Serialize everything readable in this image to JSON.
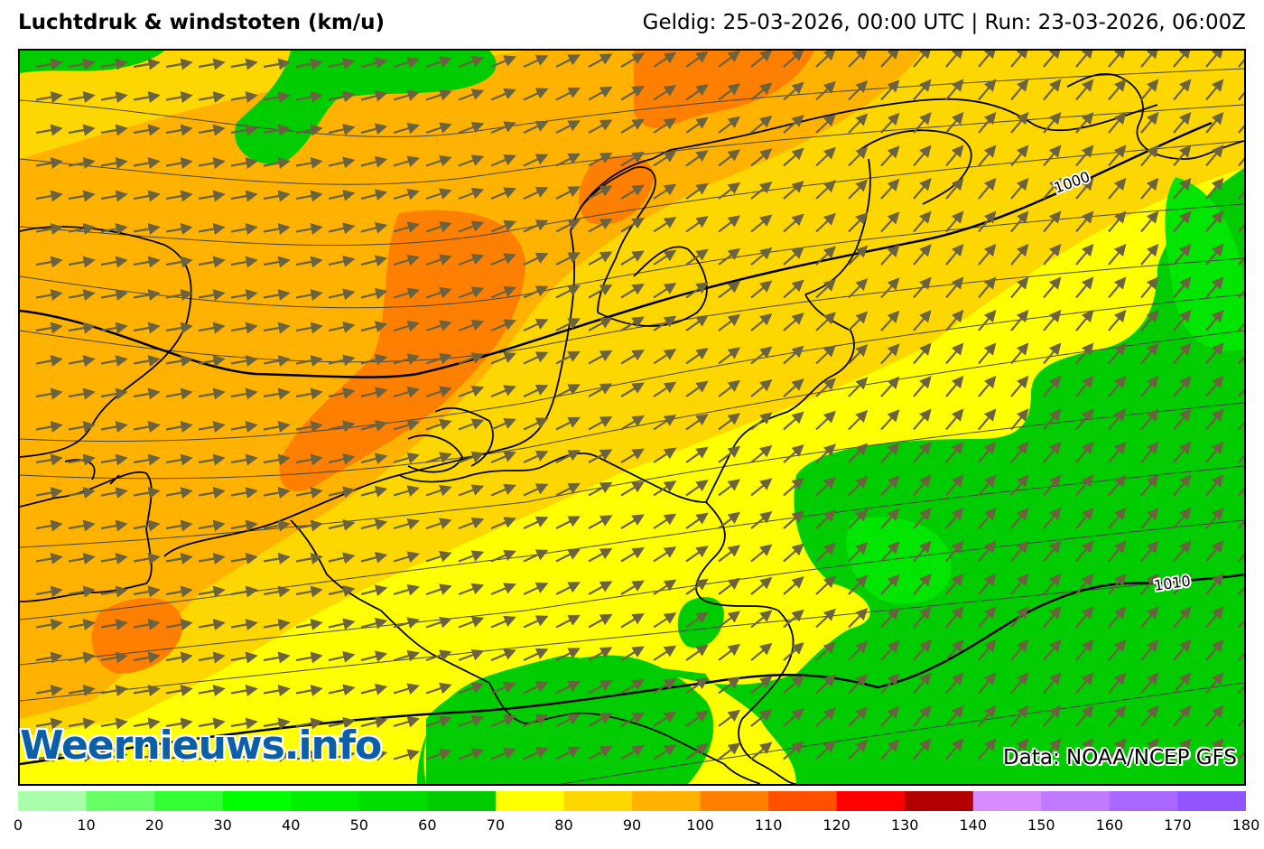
{
  "header": {
    "title": "Luchtdruk & windstoten (km/u)",
    "valid": "Geldig: 25-03-2026, 00:00 UTC | Run: 23-03-2026, 06:00Z"
  },
  "map": {
    "isobar_labels": [
      "1000",
      "1010"
    ],
    "brand": "Weernieuws.info",
    "credit": "Data: NOAA/NCEP GFS"
  },
  "legend": {
    "ticks": [
      "0",
      "10",
      "20",
      "30",
      "40",
      "50",
      "60",
      "70",
      "80",
      "90",
      "100",
      "110",
      "120",
      "130",
      "140",
      "150",
      "160",
      "170",
      "180"
    ],
    "colors": [
      "#aaffaa",
      "#66ff66",
      "#33ff33",
      "#00ff00",
      "#00ee00",
      "#00dd00",
      "#00cc00",
      "#ffff00",
      "#ffd700",
      "#ffb300",
      "#ff8000",
      "#ff5000",
      "#ff0000",
      "#b00000",
      "#d88aff",
      "#c07aff",
      "#a868ff",
      "#9055ff",
      "#7a48e0"
    ]
  },
  "colors": {
    "green": "#00cc00",
    "light_green": "#00e600",
    "yellow": "#ffff00",
    "gold": "#ffd700",
    "amber": "#ffb300",
    "orange": "#ff8000",
    "arrow": "#6b6340"
  }
}
